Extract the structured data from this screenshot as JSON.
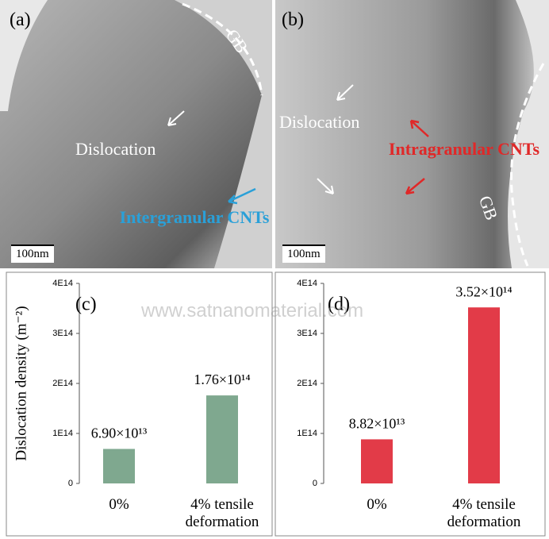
{
  "micrographs": [
    {
      "label": "(a)",
      "gb": "GB",
      "dislocation": "Dislocation",
      "cnts": "Intergranular CNTs",
      "scale_bar": "100nm"
    },
    {
      "label": "(b)",
      "dislocation": "Dislocation",
      "cnts": "Intragranular CNTs",
      "gb": "GB",
      "scale_bar": "100nm"
    }
  ],
  "watermark": "www.satnanomaterial.com",
  "chart_data": [
    {
      "type": "bar",
      "panel": "(c)",
      "ylabel": "Dislocation density (m⁻²)",
      "categories": [
        "0%",
        "4% tensile deformation"
      ],
      "values": [
        69000000000000.0,
        176000000000000.0
      ],
      "value_labels": [
        "6.90×10¹³",
        "1.76×10¹⁴"
      ],
      "color": "#7fa88f",
      "ylim": [
        0,
        400000000000000.0
      ],
      "yticks": [
        0,
        {
          "value": 100000000000000.0,
          "label": "1E14"
        },
        {
          "value": 200000000000000.0,
          "label": "2E14"
        },
        {
          "value": 300000000000000.0,
          "label": "3E14"
        },
        {
          "value": 400000000000000.0,
          "label": "4E14"
        }
      ]
    },
    {
      "type": "bar",
      "panel": "(d)",
      "categories": [
        "0%",
        "4% tensile deformation"
      ],
      "values": [
        88200000000000.0,
        352000000000000.0
      ],
      "value_labels": [
        "8.82×10¹³",
        "3.52×10¹⁴"
      ],
      "color": "#e23b48",
      "ylim": [
        0,
        400000000000000.0
      ],
      "yticks": [
        0,
        {
          "value": 100000000000000.0,
          "label": "1E14"
        },
        {
          "value": 200000000000000.0,
          "label": "2E14"
        },
        {
          "value": 300000000000000.0,
          "label": "3E14"
        },
        {
          "value": 400000000000000.0,
          "label": "4E14"
        }
      ]
    }
  ]
}
